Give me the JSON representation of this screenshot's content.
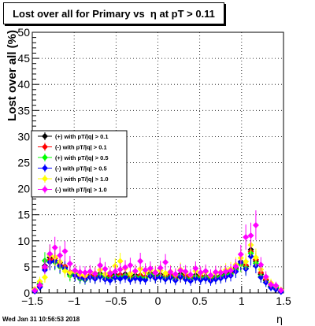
{
  "title": "Lost over all for Primary vs  η at pT > 0.11",
  "footer": "Wed Jan 31 10:56:53 2018",
  "chart_data": {
    "type": "scatter",
    "title": "Lost over all for Primary vs  η at pT > 0.11",
    "xlabel": "η",
    "ylabel": "Lost over all (%)",
    "xlim": [
      -1.5,
      1.5
    ],
    "ylim": [
      0,
      50
    ],
    "xticks": [
      -1.5,
      -1,
      -0.5,
      0,
      0.5,
      1,
      1.5
    ],
    "yticks": [
      0,
      5,
      10,
      15,
      20,
      25,
      30,
      35,
      40,
      45,
      50
    ],
    "grid": true,
    "legend_position": "left-middle",
    "x": [
      -1.47,
      -1.41,
      -1.35,
      -1.29,
      -1.23,
      -1.17,
      -1.11,
      -1.05,
      -0.99,
      -0.93,
      -0.87,
      -0.81,
      -0.75,
      -0.69,
      -0.63,
      -0.57,
      -0.51,
      -0.45,
      -0.39,
      -0.33,
      -0.27,
      -0.21,
      -0.15,
      -0.09,
      -0.03,
      0.03,
      0.09,
      0.15,
      0.21,
      0.27,
      0.33,
      0.39,
      0.45,
      0.51,
      0.57,
      0.63,
      0.69,
      0.75,
      0.81,
      0.87,
      0.93,
      0.99,
      1.05,
      1.11,
      1.17,
      1.23,
      1.29,
      1.35,
      1.41,
      1.47
    ],
    "series": [
      {
        "name": "(+) with pT/|q| > 0.1",
        "color": "#000000",
        "values": [
          0.6,
          1.6,
          5.2,
          6.8,
          6.2,
          5.8,
          4.9,
          3.6,
          3.4,
          3.1,
          2.9,
          3.3,
          3.0,
          3.7,
          3.1,
          2.8,
          3.5,
          3.2,
          3.6,
          2.9,
          3.4,
          3.1,
          3.0,
          3.8,
          3.2,
          3.5,
          3.0,
          3.3,
          2.9,
          3.6,
          3.1,
          2.8,
          3.4,
          3.0,
          3.2,
          2.7,
          3.1,
          3.3,
          3.6,
          3.9,
          4.8,
          6.0,
          5.1,
          8.3,
          6.1,
          3.6,
          2.4,
          1.3,
          1.1,
          0.5
        ]
      },
      {
        "name": "(-) with pT/|q| > 0.1",
        "color": "#ff0000",
        "values": [
          0.4,
          1.3,
          4.8,
          6.3,
          6.6,
          5.4,
          5.1,
          4.0,
          3.7,
          3.2,
          3.0,
          3.4,
          3.3,
          3.2,
          3.0,
          3.4,
          3.1,
          3.5,
          3.3,
          3.2,
          2.9,
          3.4,
          3.1,
          3.6,
          3.0,
          3.3,
          3.1,
          3.5,
          3.2,
          3.0,
          3.4,
          3.1,
          2.9,
          3.3,
          3.1,
          3.0,
          2.9,
          3.2,
          3.4,
          3.7,
          4.5,
          5.6,
          5.3,
          7.9,
          6.4,
          3.9,
          2.6,
          1.6,
          0.9,
          0.4
        ]
      },
      {
        "name": "(+) with pT/|q| > 0.5",
        "color": "#00ff00",
        "values": [
          0.5,
          1.8,
          6.2,
          7.4,
          5.9,
          5.0,
          4.5,
          3.3,
          3.6,
          2.7,
          2.5,
          3.1,
          2.8,
          3.4,
          2.9,
          2.6,
          3.2,
          3.0,
          3.3,
          2.7,
          3.1,
          2.9,
          2.8,
          3.5,
          3.0,
          3.2,
          2.8,
          3.1,
          2.6,
          3.3,
          2.8,
          2.6,
          3.1,
          2.8,
          3.0,
          2.5,
          2.9,
          3.1,
          3.4,
          3.6,
          4.4,
          5.5,
          4.8,
          7.6,
          5.7,
          3.2,
          2.1,
          1.1,
          0.9,
          0.3
        ]
      },
      {
        "name": "(-) with pT/|q| > 0.5",
        "color": "#0000ff",
        "values": [
          0.3,
          1.1,
          4.4,
          5.9,
          6.1,
          5.2,
          4.7,
          3.8,
          3.3,
          2.9,
          2.6,
          3.0,
          2.7,
          3.1,
          2.6,
          2.4,
          2.9,
          2.7,
          3.0,
          2.5,
          2.8,
          2.6,
          2.5,
          3.2,
          2.8,
          3.0,
          2.6,
          2.9,
          2.4,
          3.1,
          2.6,
          2.3,
          2.8,
          2.5,
          2.7,
          2.3,
          2.6,
          2.8,
          3.1,
          3.3,
          4.1,
          5.9,
          4.6,
          7.0,
          5.2,
          3.0,
          2.0,
          1.0,
          0.7,
          0.2
        ]
      },
      {
        "name": "(+) with pT/|q| > 1.0",
        "color": "#ffff00",
        "values": [
          0.7,
          2.2,
          3.0,
          7.2,
          6.9,
          6.0,
          4.2,
          3.9,
          4.1,
          3.5,
          3.3,
          4.0,
          3.8,
          4.4,
          3.6,
          3.9,
          5.2,
          6.1,
          4.7,
          3.7,
          4.1,
          4.6,
          3.9,
          4.4,
          4.0,
          4.3,
          3.8,
          4.1,
          3.5,
          4.5,
          3.9,
          3.4,
          4.2,
          3.7,
          4.0,
          3.3,
          3.8,
          4.0,
          4.4,
          4.6,
          5.4,
          6.7,
          6.0,
          9.2,
          6.8,
          4.5,
          3.0,
          1.9,
          1.3,
          0.6
        ]
      },
      {
        "name": "(-) with pT/|q| > 1.0",
        "color": "#ff00ff",
        "values": [
          0.5,
          1.5,
          5.0,
          7.5,
          8.7,
          7.2,
          8.0,
          5.6,
          4.3,
          4.0,
          3.9,
          4.1,
          3.7,
          5.3,
          4.6,
          3.8,
          4.1,
          4.5,
          4.9,
          5.3,
          4.2,
          6.1,
          4.4,
          4.7,
          3.9,
          4.8,
          5.9,
          4.0,
          3.6,
          4.3,
          4.1,
          3.5,
          4.7,
          3.9,
          4.2,
          3.4,
          4.0,
          3.9,
          4.1,
          4.3,
          5.1,
          7.4,
          10.7,
          11.0,
          13.0,
          5.4,
          3.1,
          1.6,
          1.4,
          0.5
        ]
      }
    ]
  }
}
